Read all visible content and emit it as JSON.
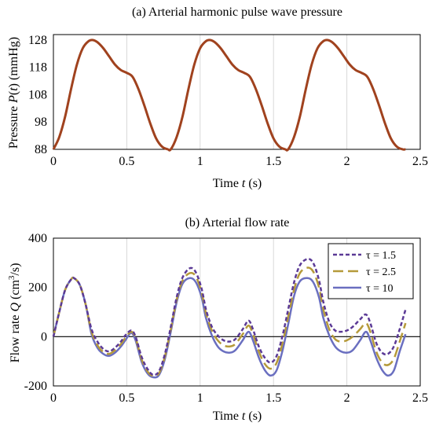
{
  "chart_data": [
    {
      "type": "line",
      "title": "(a) Arterial harmonic pulse wave pressure",
      "xlabel_parts": [
        "Time ",
        "t",
        " (s)"
      ],
      "ylabel_parts": [
        "Pressure ",
        "P",
        "(",
        "t",
        ") (mmHg)"
      ],
      "xlim": [
        0,
        2.5
      ],
      "ylim": [
        88,
        130
      ],
      "x_ticks": [
        "0",
        "0.5",
        "1",
        "1.5",
        "2",
        "2.5"
      ],
      "y_ticks": [
        "88",
        "98",
        "108",
        "118",
        "128"
      ],
      "grid": "vertical",
      "legend": "none",
      "color": "#a0421e",
      "series": [
        {
          "x": [
            0,
            0.04,
            0.08,
            0.12,
            0.16,
            0.2,
            0.24,
            0.27,
            0.3,
            0.34,
            0.38,
            0.42,
            0.46,
            0.5,
            0.54,
            0.58,
            0.62,
            0.66,
            0.7,
            0.74,
            0.78,
            0.8,
            0.84,
            0.88,
            0.92,
            0.96,
            1.0,
            1.04,
            1.07,
            1.1,
            1.14,
            1.18,
            1.22,
            1.26,
            1.3,
            1.34,
            1.38,
            1.42,
            1.46,
            1.5,
            1.54,
            1.58,
            1.6,
            1.64,
            1.68,
            1.72,
            1.76,
            1.8,
            1.84,
            1.87,
            1.9,
            1.94,
            1.98,
            2.02,
            2.06,
            2.1,
            2.14,
            2.18,
            2.22,
            2.26,
            2.3,
            2.34,
            2.38,
            2.4
          ],
          "y": [
            88,
            92.5,
            100,
            110,
            119,
            125,
            127.6,
            128,
            127.2,
            125,
            122,
            119,
            117,
            116,
            114.5,
            110,
            104,
            97.5,
            92,
            89,
            88,
            88,
            92.5,
            100,
            110,
            119,
            125,
            127.6,
            128,
            127.2,
            125,
            122,
            119,
            117,
            116,
            114.5,
            110,
            104,
            97.5,
            92,
            89,
            88,
            88,
            92.5,
            100,
            110,
            119,
            125,
            127.6,
            128,
            127.2,
            125,
            122,
            119,
            117,
            116,
            114.5,
            110,
            104,
            97.5,
            92,
            89,
            88,
            88
          ]
        }
      ]
    },
    {
      "type": "line",
      "title": "(b) Arterial flow rate",
      "xlabel_parts": [
        "Time ",
        "t",
        " (s)"
      ],
      "ylabel_parts": [
        "Flow rate ",
        "Q",
        " (cm",
        "3",
        "/s)"
      ],
      "xlim": [
        0,
        2.5
      ],
      "ylim": [
        -200,
        400
      ],
      "x_ticks": [
        "0",
        "0.5",
        "1",
        "1.5",
        "2",
        "2.5"
      ],
      "y_ticks": [
        "-200",
        "0",
        "200",
        "400"
      ],
      "grid": "vertical",
      "legend": "top-right",
      "series": [
        {
          "name": "τ = 1.5",
          "color": "#5b3a96",
          "dash": "short",
          "x": [
            0,
            0.04,
            0.08,
            0.12,
            0.14,
            0.18,
            0.22,
            0.26,
            0.3,
            0.34,
            0.38,
            0.42,
            0.46,
            0.49,
            0.53,
            0.56,
            0.6,
            0.64,
            0.68,
            0.72,
            0.76,
            0.8,
            0.84,
            0.88,
            0.93,
            0.97,
            1.01,
            1.04,
            1.08,
            1.12,
            1.16,
            1.2,
            1.24,
            1.29,
            1.33,
            1.36,
            1.4,
            1.44,
            1.48,
            1.52,
            1.56,
            1.6,
            1.64,
            1.68,
            1.73,
            1.77,
            1.81,
            1.84,
            1.88,
            1.92,
            1.96,
            2.0,
            2.04,
            2.09,
            2.13,
            2.16,
            2.2,
            2.24,
            2.28,
            2.32,
            2.36,
            2.4
          ],
          "y": [
            0,
            100,
            190,
            232,
            238,
            210,
            130,
            30,
            -20,
            -50,
            -60,
            -45,
            -20,
            5,
            25,
            0,
            -80,
            -130,
            -155,
            -140,
            -70,
            40,
            160,
            240,
            278,
            262,
            195,
            110,
            40,
            5,
            -15,
            -20,
            -10,
            30,
            65,
            30,
            -40,
            -85,
            -105,
            -80,
            0,
            110,
            220,
            290,
            315,
            300,
            230,
            140,
            60,
            25,
            20,
            25,
            40,
            70,
            90,
            55,
            -25,
            -65,
            -70,
            -40,
            30,
            110
          ]
        },
        {
          "name": "τ = 2.5",
          "color": "#b59a3a",
          "dash": "long",
          "x": [
            0,
            0.04,
            0.08,
            0.12,
            0.14,
            0.18,
            0.22,
            0.26,
            0.3,
            0.34,
            0.38,
            0.42,
            0.46,
            0.49,
            0.53,
            0.56,
            0.6,
            0.64,
            0.68,
            0.72,
            0.76,
            0.8,
            0.84,
            0.88,
            0.93,
            0.97,
            1.01,
            1.04,
            1.08,
            1.12,
            1.16,
            1.2,
            1.24,
            1.29,
            1.33,
            1.36,
            1.4,
            1.44,
            1.48,
            1.52,
            1.56,
            1.6,
            1.64,
            1.68,
            1.73,
            1.77,
            1.81,
            1.84,
            1.88,
            1.92,
            1.96,
            2.0,
            2.04,
            2.09,
            2.13,
            2.16,
            2.2,
            2.24,
            2.28,
            2.32,
            2.36,
            2.4
          ],
          "y": [
            0,
            100,
            190,
            232,
            238,
            210,
            130,
            20,
            -35,
            -62,
            -70,
            -55,
            -30,
            -5,
            20,
            -5,
            -90,
            -140,
            -160,
            -148,
            -80,
            30,
            150,
            228,
            258,
            245,
            180,
            95,
            25,
            -15,
            -35,
            -40,
            -30,
            10,
            45,
            10,
            -60,
            -110,
            -130,
            -108,
            -30,
            80,
            190,
            258,
            280,
            265,
            200,
            110,
            30,
            -10,
            -20,
            -15,
            0,
            30,
            55,
            20,
            -60,
            -105,
            -115,
            -90,
            -20,
            55
          ]
        },
        {
          "name": "τ = 10",
          "color": "#6a6fc0",
          "dash": "solid",
          "x": [
            0,
            0.04,
            0.08,
            0.12,
            0.14,
            0.18,
            0.22,
            0.26,
            0.3,
            0.34,
            0.38,
            0.42,
            0.46,
            0.49,
            0.53,
            0.56,
            0.6,
            0.64,
            0.68,
            0.72,
            0.76,
            0.8,
            0.84,
            0.88,
            0.93,
            0.97,
            1.01,
            1.04,
            1.08,
            1.12,
            1.16,
            1.2,
            1.24,
            1.29,
            1.33,
            1.36,
            1.4,
            1.44,
            1.48,
            1.52,
            1.56,
            1.6,
            1.64,
            1.68,
            1.73,
            1.77,
            1.81,
            1.84,
            1.88,
            1.92,
            1.96,
            2.0,
            2.04,
            2.09,
            2.13,
            2.16,
            2.2,
            2.24,
            2.28,
            2.32,
            2.36,
            2.4
          ],
          "y": [
            0,
            100,
            190,
            232,
            238,
            210,
            130,
            10,
            -45,
            -70,
            -78,
            -65,
            -40,
            -15,
            15,
            -15,
            -100,
            -148,
            -165,
            -155,
            -90,
            20,
            140,
            215,
            238,
            222,
            160,
            75,
            5,
            -40,
            -60,
            -65,
            -55,
            -15,
            20,
            -15,
            -85,
            -135,
            -158,
            -138,
            -60,
            50,
            165,
            225,
            238,
            222,
            160,
            75,
            5,
            -40,
            -60,
            -65,
            -55,
            -15,
            20,
            -15,
            -85,
            -135,
            -158,
            -138,
            -60,
            10
          ]
        }
      ]
    }
  ]
}
